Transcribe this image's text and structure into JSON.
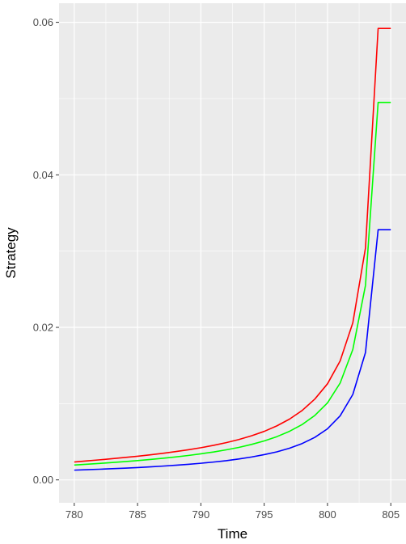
{
  "chart_data": {
    "type": "line",
    "xlabel": "Time",
    "ylabel": "Strategy",
    "xlim": [
      778.8,
      806.2
    ],
    "ylim": [
      -0.003,
      0.0625
    ],
    "x_ticks": [
      780,
      785,
      790,
      795,
      800,
      805
    ],
    "x_tick_labels": [
      "780",
      "785",
      "790",
      "795",
      "800",
      "805"
    ],
    "y_ticks": [
      0.0,
      0.02,
      0.04,
      0.06
    ],
    "y_tick_labels": [
      "0.00",
      "0.02",
      "0.04",
      "0.06"
    ],
    "grid": true,
    "legend": "none",
    "panel_color": "#ebebeb",
    "x": [
      780,
      781,
      782,
      783,
      784,
      785,
      786,
      787,
      788,
      789,
      790,
      791,
      792,
      793,
      794,
      795,
      796,
      797,
      798,
      799,
      800,
      801,
      802,
      803,
      804,
      805
    ],
    "series": [
      {
        "color": "#ff0000",
        "values": [
          0.00235,
          0.00249,
          0.00263,
          0.00278,
          0.00294,
          0.0031,
          0.00329,
          0.00349,
          0.00371,
          0.00395,
          0.00422,
          0.00453,
          0.00488,
          0.00529,
          0.00578,
          0.00636,
          0.00708,
          0.00797,
          0.0091,
          0.0106,
          0.0126,
          0.0156,
          0.0206,
          0.0304,
          0.0592,
          0.0592
        ]
      },
      {
        "color": "#00ff00",
        "values": [
          0.00195,
          0.00205,
          0.00216,
          0.00228,
          0.0024,
          0.00253,
          0.00268,
          0.00284,
          0.00301,
          0.0032,
          0.00342,
          0.00366,
          0.00394,
          0.00426,
          0.00465,
          0.00511,
          0.00567,
          0.00637,
          0.00726,
          0.00845,
          0.0101,
          0.0127,
          0.0171,
          0.0255,
          0.0495,
          0.0495
        ]
      },
      {
        "color": "#0000ff",
        "values": [
          0.00128,
          0.00134,
          0.0014,
          0.00147,
          0.00154,
          0.00162,
          0.00171,
          0.00181,
          0.00192,
          0.00204,
          0.00218,
          0.00234,
          0.00252,
          0.00274,
          0.003,
          0.00331,
          0.00368,
          0.00415,
          0.00477,
          0.00558,
          0.0067,
          0.0084,
          0.0112,
          0.0167,
          0.0328,
          0.0328
        ]
      }
    ]
  }
}
